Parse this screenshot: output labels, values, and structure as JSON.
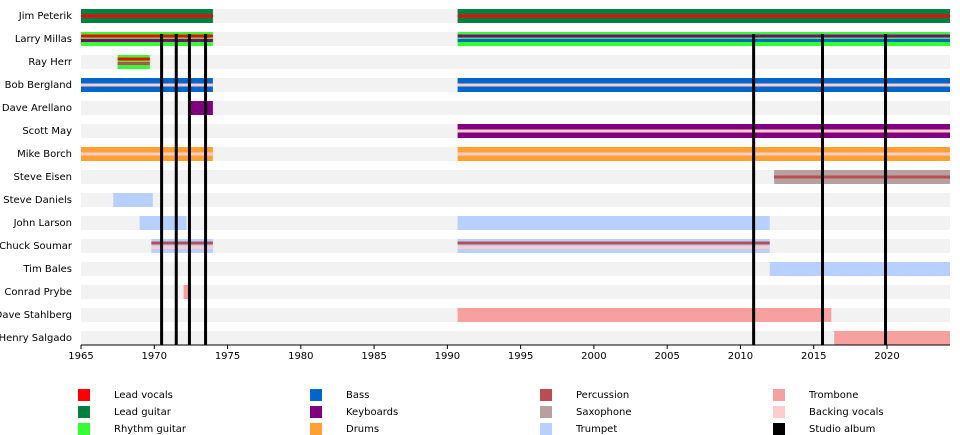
{
  "chart_data": {
    "type": "timeline",
    "xlim": [
      1965,
      2024.3
    ],
    "xticks": [
      1965,
      1970,
      1975,
      1980,
      1985,
      1990,
      1995,
      2000,
      2005,
      2010,
      2015,
      2020
    ],
    "roles": [
      {
        "name": "Lead vocals",
        "color": "#ff0000"
      },
      {
        "name": "Lead guitar",
        "color": "#008040"
      },
      {
        "name": "Rhythm guitar",
        "color": "#33ff33"
      },
      {
        "name": "Bass",
        "color": "#0066cc"
      },
      {
        "name": "Keyboards",
        "color": "#800080"
      },
      {
        "name": "Drums",
        "color": "#ffa033"
      },
      {
        "name": "Percussion",
        "color": "#b84d52"
      },
      {
        "name": "Saxophone",
        "color": "#b8a0a0"
      },
      {
        "name": "Trumpet",
        "color": "#b8d0ff"
      },
      {
        "name": "Trombone",
        "color": "#f7a0a0"
      },
      {
        "name": "Backing vocals",
        "color": "#ffcccc"
      }
    ],
    "album_label": "Studio album",
    "album_color": "#000000",
    "albums": [
      1970.5,
      1971.5,
      1972.4,
      1973.5,
      2010.9,
      2015.6,
      2019.9
    ],
    "members": [
      {
        "name": "Jim Peterik",
        "periods": [
          {
            "start": 1965,
            "end": 1974.0,
            "roles": [
              "Lead guitar",
              "Lead vocals"
            ]
          },
          {
            "start": 1990.7,
            "end": 2024.3,
            "roles": [
              "Lead guitar",
              "Lead vocals"
            ]
          }
        ]
      },
      {
        "name": "Larry Millas",
        "periods": [
          {
            "start": 1965,
            "end": 1974.0,
            "roles": [
              "Rhythm guitar",
              "Lead vocals",
              "Keyboards"
            ]
          },
          {
            "start": 1990.7,
            "end": 2024.3,
            "roles": [
              "Rhythm guitar",
              "Keyboards",
              "Bass"
            ]
          }
        ]
      },
      {
        "name": "Ray Herr",
        "periods": [
          {
            "start": 1967.5,
            "end": 1969.7,
            "roles": [
              "Rhythm guitar",
              "Lead vocals",
              "Percussion"
            ]
          }
        ]
      },
      {
        "name": "Bob Bergland",
        "periods": [
          {
            "start": 1965,
            "end": 1974.0,
            "roles": [
              "Bass",
              "Backing vocals"
            ]
          },
          {
            "start": 1990.7,
            "end": 2024.3,
            "roles": [
              "Bass",
              "Backing vocals"
            ]
          }
        ]
      },
      {
        "name": "Dave Arellano",
        "periods": [
          {
            "start": 1972.4,
            "end": 1974.0,
            "roles": [
              "Keyboards"
            ]
          }
        ]
      },
      {
        "name": "Scott May",
        "periods": [
          {
            "start": 1990.7,
            "end": 2024.3,
            "roles": [
              "Keyboards",
              "Backing vocals"
            ]
          }
        ]
      },
      {
        "name": "Mike Borch",
        "periods": [
          {
            "start": 1965,
            "end": 1974.0,
            "roles": [
              "Drums",
              "Backing vocals"
            ]
          },
          {
            "start": 1990.7,
            "end": 2024.3,
            "roles": [
              "Drums",
              "Backing vocals"
            ]
          }
        ]
      },
      {
        "name": "Steve Eisen",
        "periods": [
          {
            "start": 2012.3,
            "end": 2024.3,
            "roles": [
              "Saxophone",
              "Percussion"
            ]
          }
        ]
      },
      {
        "name": "Steve Daniels",
        "periods": [
          {
            "start": 1967.2,
            "end": 1969.9,
            "roles": [
              "Trumpet"
            ]
          }
        ]
      },
      {
        "name": "John Larson",
        "periods": [
          {
            "start": 1969.0,
            "end": 1972.2,
            "roles": [
              "Trumpet"
            ]
          },
          {
            "start": 1990.7,
            "end": 2012.0,
            "roles": [
              "Trumpet"
            ]
          }
        ]
      },
      {
        "name": "Chuck Soumar",
        "periods": [
          {
            "start": 1969.8,
            "end": 1974.0,
            "roles": [
              "Trumpet",
              "Percussion",
              "Backing vocals"
            ]
          },
          {
            "start": 1990.7,
            "end": 2012.0,
            "roles": [
              "Trumpet",
              "Percussion",
              "Backing vocals"
            ]
          }
        ]
      },
      {
        "name": "Tim Bales",
        "periods": [
          {
            "start": 2012.0,
            "end": 2024.3,
            "roles": [
              "Trumpet"
            ]
          }
        ]
      },
      {
        "name": "Conrad Prybe",
        "periods": [
          {
            "start": 1972.0,
            "end": 1972.3,
            "roles": [
              "Trombone"
            ]
          }
        ]
      },
      {
        "name": "Dave Stahlberg",
        "periods": [
          {
            "start": 1990.7,
            "end": 2016.2,
            "roles": [
              "Trombone"
            ]
          }
        ]
      },
      {
        "name": "Henry Salgado",
        "periods": [
          {
            "start": 2016.4,
            "end": 2024.3,
            "roles": [
              "Trombone"
            ]
          }
        ]
      }
    ]
  }
}
